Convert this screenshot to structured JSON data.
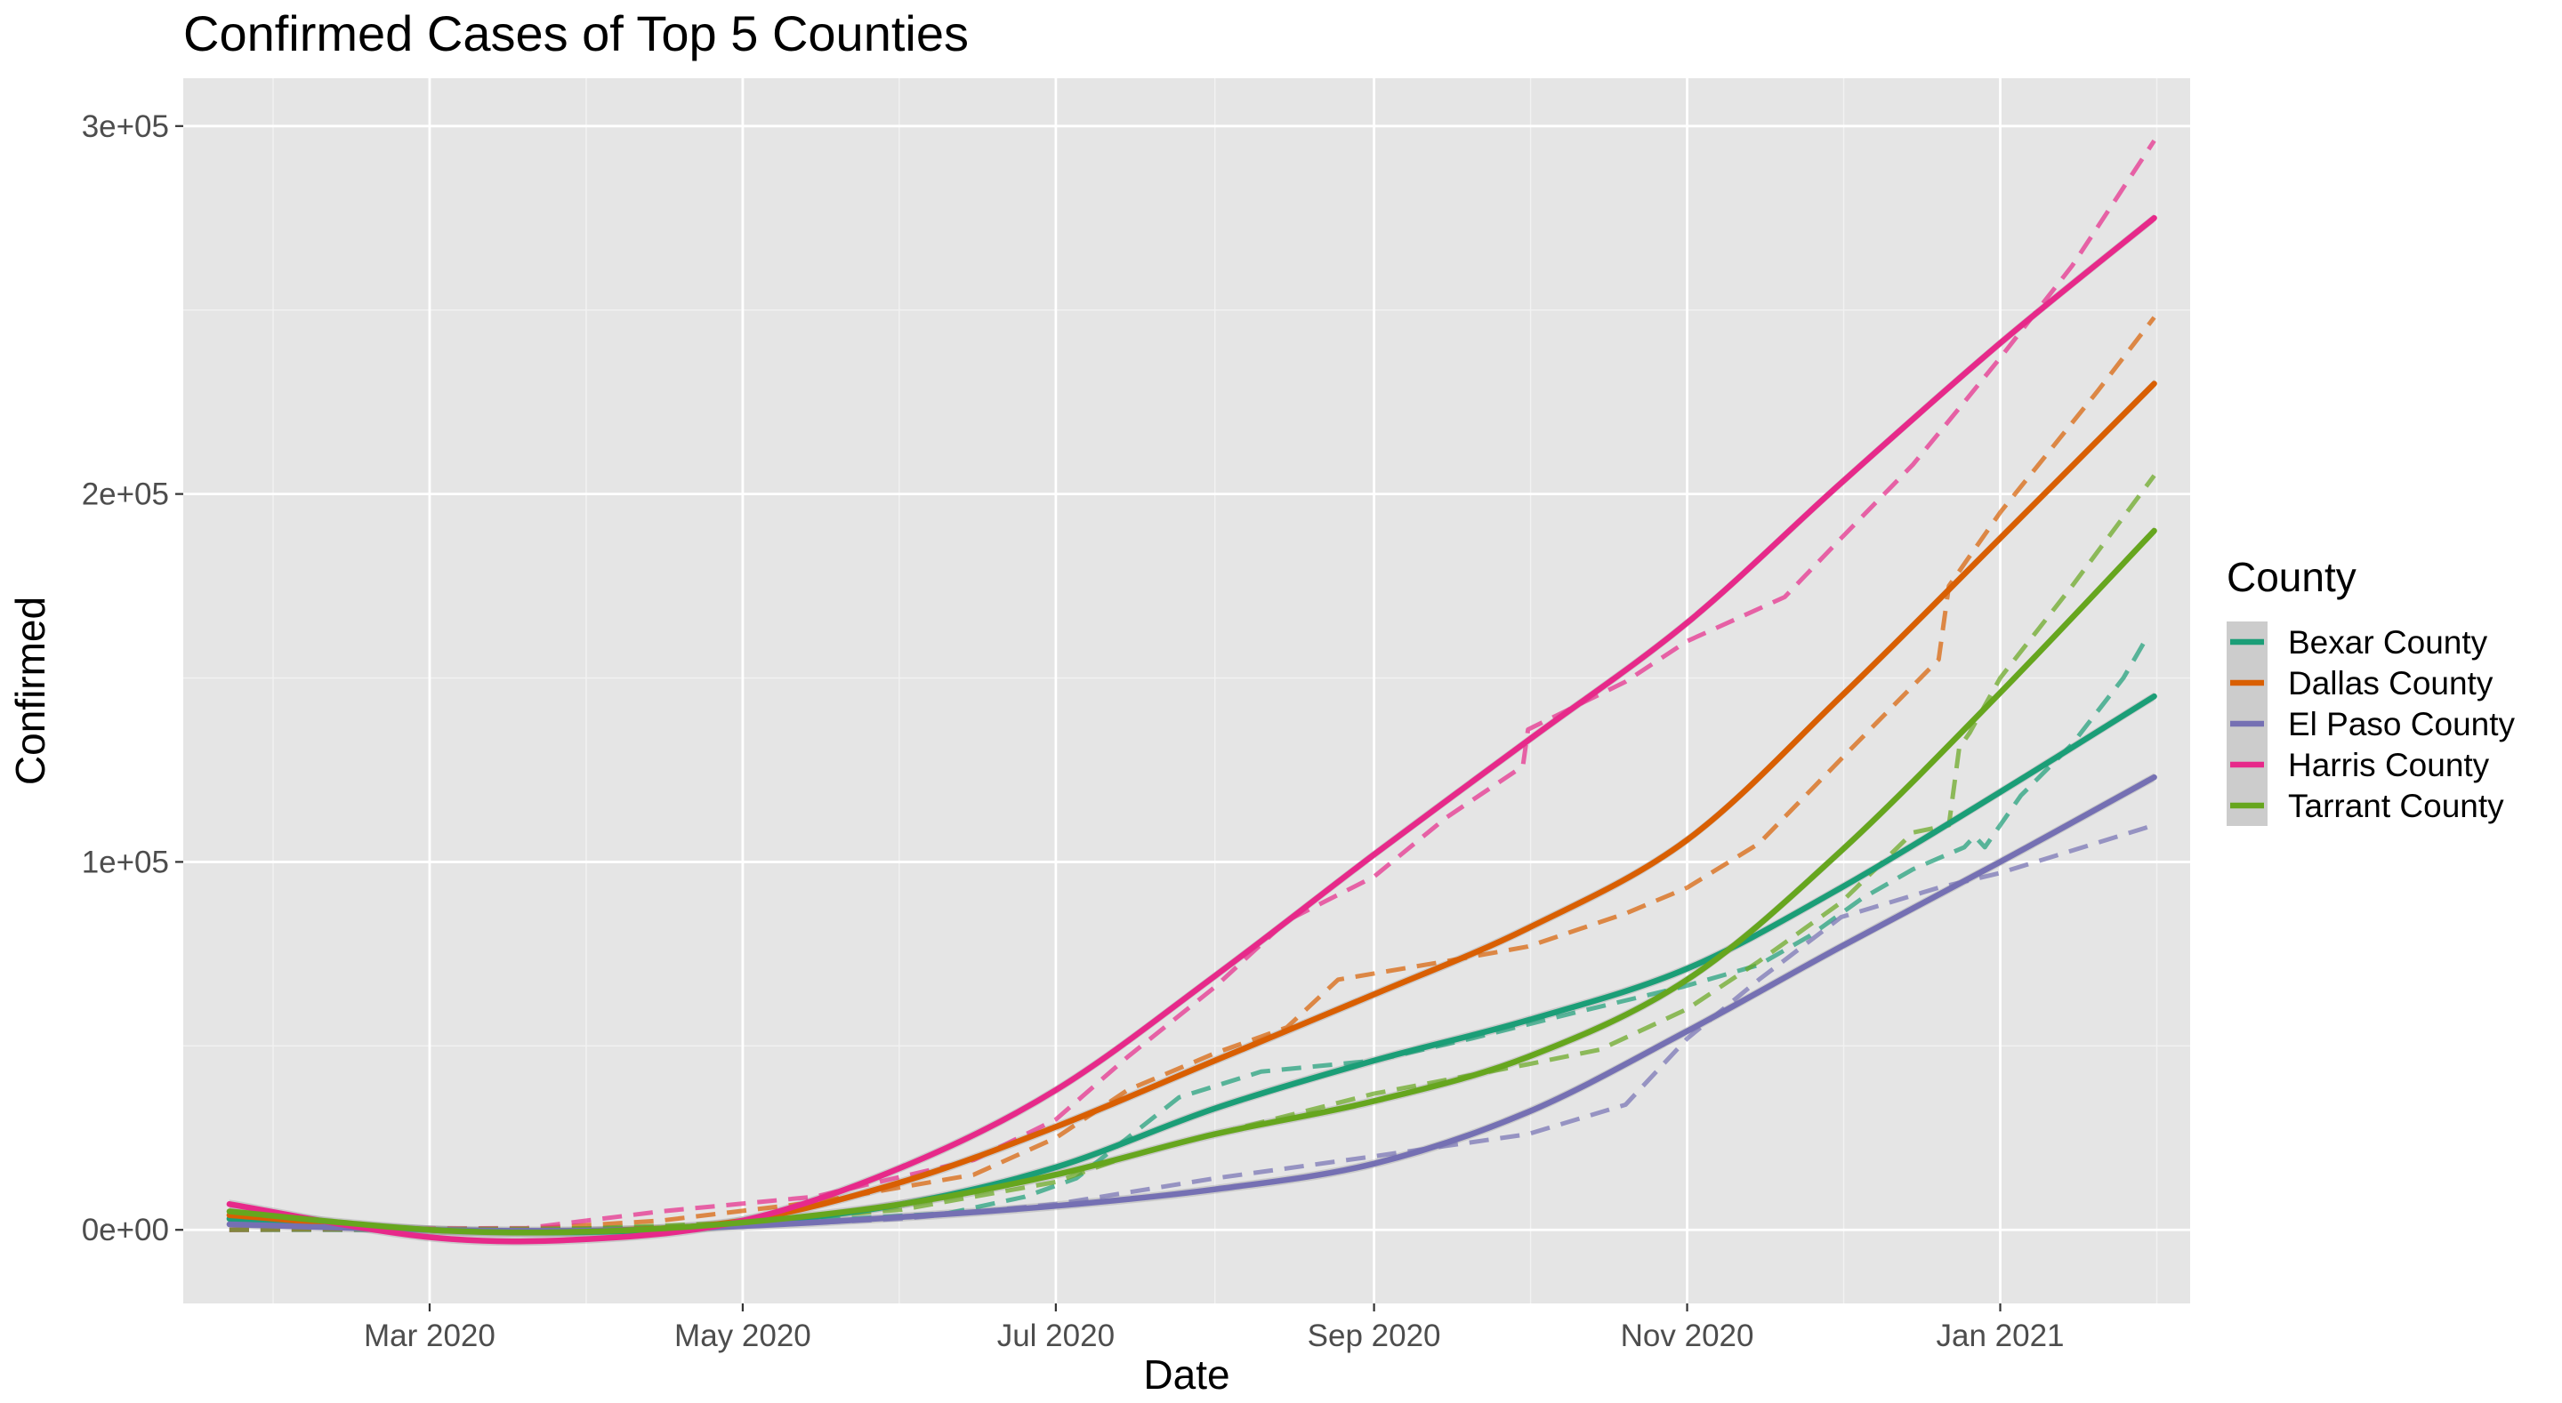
{
  "chart_data": {
    "type": "line",
    "title": "Confirmed Cases of Top 5 Counties",
    "xlabel": "Date",
    "ylabel": "Confirmed",
    "x_ticks": [
      {
        "date": "2020-03-01",
        "label": "Mar 2020"
      },
      {
        "date": "2020-05-01",
        "label": "May 2020"
      },
      {
        "date": "2020-07-01",
        "label": "Jul 2020"
      },
      {
        "date": "2020-09-01",
        "label": "Sep 2020"
      },
      {
        "date": "2020-11-01",
        "label": "Nov 2020"
      },
      {
        "date": "2021-01-01",
        "label": "Jan 2021"
      }
    ],
    "y_ticks": [
      {
        "value": 0,
        "label": "0e+00"
      },
      {
        "value": 100000,
        "label": "1e+05"
      },
      {
        "value": 200000,
        "label": "2e+05"
      },
      {
        "value": 300000,
        "label": "3e+05"
      }
    ],
    "xlim": [
      "2020-01-13",
      "2021-02-07"
    ],
    "ylim": [
      -20000,
      313000
    ],
    "grid": true,
    "background": "#e5e5e5",
    "legend": {
      "title": "County",
      "position": "right"
    },
    "series": [
      {
        "name": "Bexar County",
        "color": "#1b9e77",
        "actual": [
          [
            "2020-01-22",
            0
          ],
          [
            "2020-03-20",
            20
          ],
          [
            "2020-04-15",
            700
          ],
          [
            "2020-05-15",
            2500
          ],
          [
            "2020-06-10",
            4500
          ],
          [
            "2020-06-25",
            9000
          ],
          [
            "2020-07-05",
            14000
          ],
          [
            "2020-07-15",
            25000
          ],
          [
            "2020-07-25",
            36000
          ],
          [
            "2020-08-10",
            43000
          ],
          [
            "2020-09-01",
            46000
          ],
          [
            "2020-09-20",
            52000
          ],
          [
            "2020-10-10",
            59000
          ],
          [
            "2020-10-31",
            66000
          ],
          [
            "2020-11-15",
            72000
          ],
          [
            "2020-11-25",
            80000
          ],
          [
            "2020-12-05",
            90000
          ],
          [
            "2020-12-15",
            98000
          ],
          [
            "2020-12-25",
            104000
          ],
          [
            "2020-12-27",
            107000
          ],
          [
            "2020-12-29",
            104000
          ],
          [
            "2021-01-05",
            118000
          ],
          [
            "2021-01-15",
            132000
          ],
          [
            "2021-01-25",
            150000
          ],
          [
            "2021-01-30",
            162000
          ]
        ],
        "smooth": [
          [
            "2020-01-22",
            3000
          ],
          [
            "2020-03-01",
            0
          ],
          [
            "2020-04-01",
            -600
          ],
          [
            "2020-05-01",
            1500
          ],
          [
            "2020-06-01",
            7000
          ],
          [
            "2020-07-01",
            17000
          ],
          [
            "2020-08-01",
            33000
          ],
          [
            "2020-09-01",
            46000
          ],
          [
            "2020-10-01",
            57000
          ],
          [
            "2020-11-01",
            71000
          ],
          [
            "2020-12-01",
            93000
          ],
          [
            "2021-01-01",
            119000
          ],
          [
            "2021-01-31",
            145000
          ]
        ]
      },
      {
        "name": "Dallas County",
        "color": "#d95f02",
        "actual": [
          [
            "2020-01-22",
            0
          ],
          [
            "2020-03-20",
            300
          ],
          [
            "2020-04-15",
            2500
          ],
          [
            "2020-05-15",
            7500
          ],
          [
            "2020-06-15",
            15000
          ],
          [
            "2020-07-01",
            25000
          ],
          [
            "2020-07-15",
            38000
          ],
          [
            "2020-08-01",
            48000
          ],
          [
            "2020-08-15",
            55000
          ],
          [
            "2020-08-25",
            68000
          ],
          [
            "2020-09-15",
            73000
          ],
          [
            "2020-10-01",
            77000
          ],
          [
            "2020-10-20",
            86000
          ],
          [
            "2020-11-01",
            93000
          ],
          [
            "2020-11-15",
            105000
          ],
          [
            "2020-12-01",
            128000
          ],
          [
            "2020-12-20",
            155000
          ],
          [
            "2020-12-22",
            175000
          ],
          [
            "2021-01-01",
            195000
          ],
          [
            "2021-01-20",
            228000
          ],
          [
            "2021-01-31",
            248000
          ]
        ],
        "smooth": [
          [
            "2020-01-22",
            4000
          ],
          [
            "2020-03-01",
            0
          ],
          [
            "2020-04-01",
            -300
          ],
          [
            "2020-05-01",
            2500
          ],
          [
            "2020-06-01",
            13000
          ],
          [
            "2020-07-01",
            28000
          ],
          [
            "2020-08-01",
            46000
          ],
          [
            "2020-09-01",
            64000
          ],
          [
            "2020-10-01",
            82000
          ],
          [
            "2020-11-01",
            106000
          ],
          [
            "2020-12-01",
            145000
          ],
          [
            "2021-01-01",
            188000
          ],
          [
            "2021-01-31",
            230000
          ]
        ]
      },
      {
        "name": "El Paso County",
        "color": "#7570b3",
        "actual": [
          [
            "2020-01-22",
            0
          ],
          [
            "2020-04-01",
            200
          ],
          [
            "2020-05-01",
            1000
          ],
          [
            "2020-06-01",
            3000
          ],
          [
            "2020-07-01",
            7000
          ],
          [
            "2020-08-01",
            14000
          ],
          [
            "2020-09-01",
            20000
          ],
          [
            "2020-10-01",
            26000
          ],
          [
            "2020-10-20",
            34000
          ],
          [
            "2020-11-01",
            52000
          ],
          [
            "2020-11-15",
            68000
          ],
          [
            "2020-12-01",
            85000
          ],
          [
            "2020-12-20",
            93000
          ],
          [
            "2021-01-01",
            97000
          ],
          [
            "2021-01-31",
            110000
          ]
        ],
        "smooth": [
          [
            "2020-01-22",
            1500
          ],
          [
            "2020-03-01",
            0
          ],
          [
            "2020-04-01",
            -200
          ],
          [
            "2020-05-01",
            1000
          ],
          [
            "2020-06-01",
            3500
          ],
          [
            "2020-07-01",
            6500
          ],
          [
            "2020-08-01",
            11000
          ],
          [
            "2020-09-01",
            18000
          ],
          [
            "2020-10-01",
            32000
          ],
          [
            "2020-11-01",
            54000
          ],
          [
            "2020-12-01",
            77000
          ],
          [
            "2021-01-01",
            100000
          ],
          [
            "2021-01-31",
            123000
          ]
        ]
      },
      {
        "name": "Harris County",
        "color": "#e7298a",
        "actual": [
          [
            "2020-01-22",
            0
          ],
          [
            "2020-03-20",
            500
          ],
          [
            "2020-04-15",
            5000
          ],
          [
            "2020-05-15",
            9000
          ],
          [
            "2020-06-15",
            19000
          ],
          [
            "2020-07-01",
            30000
          ],
          [
            "2020-07-15",
            47000
          ],
          [
            "2020-08-01",
            66000
          ],
          [
            "2020-08-15",
            84000
          ],
          [
            "2020-09-01",
            96000
          ],
          [
            "2020-09-15",
            112000
          ],
          [
            "2020-09-30",
            126000
          ],
          [
            "2020-10-01",
            136000
          ],
          [
            "2020-10-20",
            149000
          ],
          [
            "2020-11-01",
            160000
          ],
          [
            "2020-11-20",
            172000
          ],
          [
            "2020-12-01",
            188000
          ],
          [
            "2020-12-15",
            208000
          ],
          [
            "2020-12-25",
            225000
          ],
          [
            "2021-01-01",
            237000
          ],
          [
            "2021-01-15",
            262000
          ],
          [
            "2021-01-31",
            296000
          ]
        ],
        "smooth": [
          [
            "2020-01-22",
            7000
          ],
          [
            "2020-03-01",
            -2000
          ],
          [
            "2020-04-01",
            -2500
          ],
          [
            "2020-05-01",
            2500
          ],
          [
            "2020-06-01",
            17000
          ],
          [
            "2020-07-01",
            38000
          ],
          [
            "2020-08-01",
            69000
          ],
          [
            "2020-09-01",
            102000
          ],
          [
            "2020-10-01",
            133000
          ],
          [
            "2020-11-01",
            165000
          ],
          [
            "2020-12-01",
            203000
          ],
          [
            "2021-01-01",
            241000
          ],
          [
            "2021-01-31",
            275000
          ]
        ]
      },
      {
        "name": "Tarrant County",
        "color": "#66a61e",
        "actual": [
          [
            "2020-01-22",
            0
          ],
          [
            "2020-04-01",
            400
          ],
          [
            "2020-05-01",
            2000
          ],
          [
            "2020-06-01",
            5500
          ],
          [
            "2020-07-01",
            13000
          ],
          [
            "2020-07-15",
            20000
          ],
          [
            "2020-08-01",
            26000
          ],
          [
            "2020-08-15",
            31000
          ],
          [
            "2020-09-01",
            37000
          ],
          [
            "2020-10-01",
            45000
          ],
          [
            "2020-10-15",
            49000
          ],
          [
            "2020-11-01",
            60000
          ],
          [
            "2020-11-15",
            73000
          ],
          [
            "2020-12-01",
            89000
          ],
          [
            "2020-12-15",
            108000
          ],
          [
            "2020-12-22",
            110000
          ],
          [
            "2020-12-24",
            131000
          ],
          [
            "2020-12-26",
            135000
          ],
          [
            "2021-01-01",
            150000
          ],
          [
            "2021-01-15",
            175000
          ],
          [
            "2021-01-31",
            205000
          ]
        ],
        "smooth": [
          [
            "2020-01-22",
            5000
          ],
          [
            "2020-03-01",
            0
          ],
          [
            "2020-04-01",
            -500
          ],
          [
            "2020-05-01",
            2000
          ],
          [
            "2020-06-01",
            7000
          ],
          [
            "2020-07-01",
            15000
          ],
          [
            "2020-08-01",
            26000
          ],
          [
            "2020-09-01",
            35000
          ],
          [
            "2020-10-01",
            47000
          ],
          [
            "2020-11-01",
            68000
          ],
          [
            "2020-12-01",
            103000
          ],
          [
            "2021-01-01",
            146000
          ],
          [
            "2021-01-31",
            190000
          ]
        ]
      }
    ]
  }
}
